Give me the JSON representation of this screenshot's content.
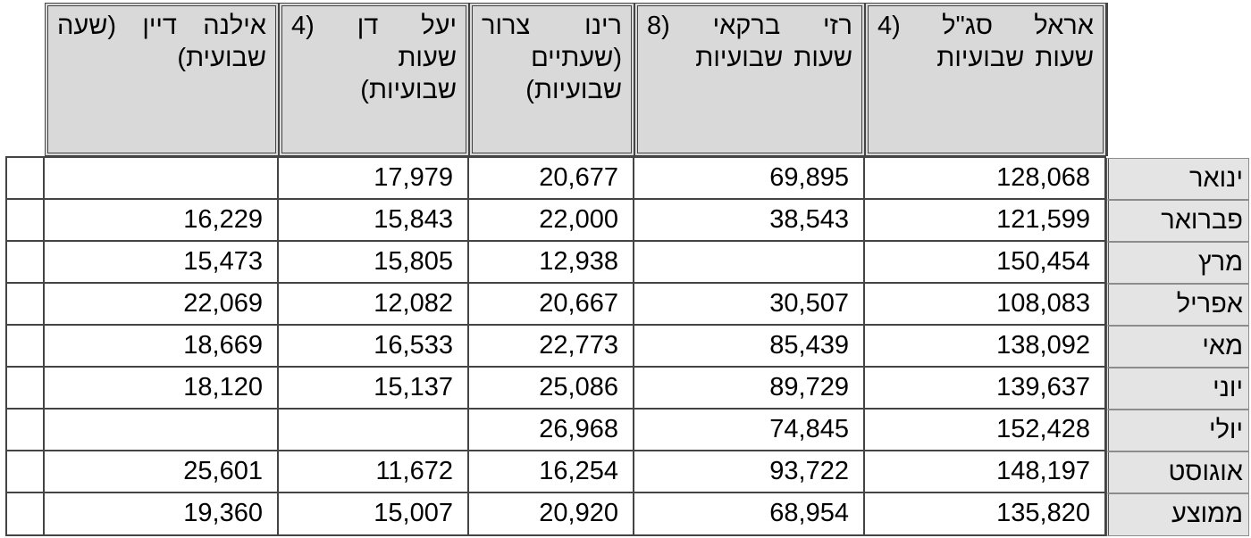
{
  "table": {
    "headers": [
      "אראל סג\"ל (4 שעות שבועיות",
      "רזי ברקאי (8 שעות שבועיות",
      "רינו צרור (שעתיים שבועיות)",
      "יעל דן (4 שעות שבועיות)",
      "אילנה דיין (שעה שבועית)"
    ],
    "rows": [
      {
        "month": "ינואר",
        "values": [
          "128,068",
          "69,895",
          "20,677",
          "17,979",
          ""
        ]
      },
      {
        "month": "פברואר",
        "values": [
          "121,599",
          "38,543",
          "22,000",
          "15,843",
          "16,229"
        ]
      },
      {
        "month": "מרץ",
        "values": [
          "150,454",
          "",
          "12,938",
          "15,805",
          "15,473"
        ]
      },
      {
        "month": "אפריל",
        "values": [
          "108,083",
          "30,507",
          "20,667",
          "12,082",
          "22,069"
        ]
      },
      {
        "month": "מאי",
        "values": [
          "138,092",
          "85,439",
          "22,773",
          "16,533",
          "18,669"
        ]
      },
      {
        "month": "יוני",
        "values": [
          "139,637",
          "89,729",
          "25,086",
          "15,137",
          "18,120"
        ]
      },
      {
        "month": "יולי",
        "values": [
          "152,428",
          "74,845",
          "26,968",
          "",
          ""
        ]
      },
      {
        "month": "אוגוסט",
        "values": [
          "148,197",
          "93,722",
          "16,254",
          "11,672",
          "25,601"
        ]
      },
      {
        "month": "ממוצע",
        "values": [
          "135,820",
          "68,954",
          "20,920",
          "15,007",
          "19,360"
        ]
      }
    ]
  },
  "colors": {
    "header_fill": "#d9d9d9",
    "month_fill": "#e4e4e4",
    "grid": "#444444"
  }
}
